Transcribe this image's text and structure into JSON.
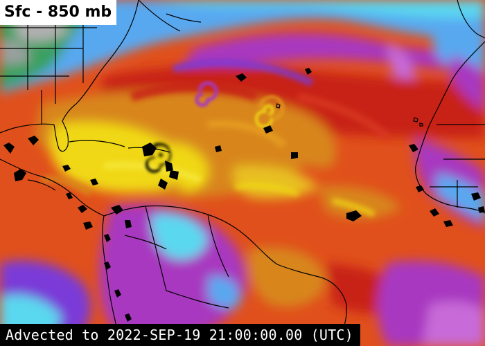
{
  "map": {
    "layer_label": "Sfc - 850 mb",
    "timestamp_label": "Advected to 2022-SEP-19 21:00:00.00 (UTC)",
    "colors": {
      "ocean_warm": "#e0501c",
      "moist_red": "#c82418",
      "moderate_orange": "#d8861a",
      "high_yellow": "#f0d818",
      "dry_magenta": "#a838c0",
      "very_dry_purple": "#7a3ad8",
      "very_dry_blue": "#58a8f0",
      "driest_cyan": "#5ad8f0",
      "land_green": "#3aa060",
      "no_data_black": "#000000",
      "boundary_lines": "#000000"
    },
    "features": [
      "hurricane-vortex-caribbean",
      "cyclone-swirl-central-atlantic",
      "cyclone-swirl-western-atlantic"
    ]
  }
}
